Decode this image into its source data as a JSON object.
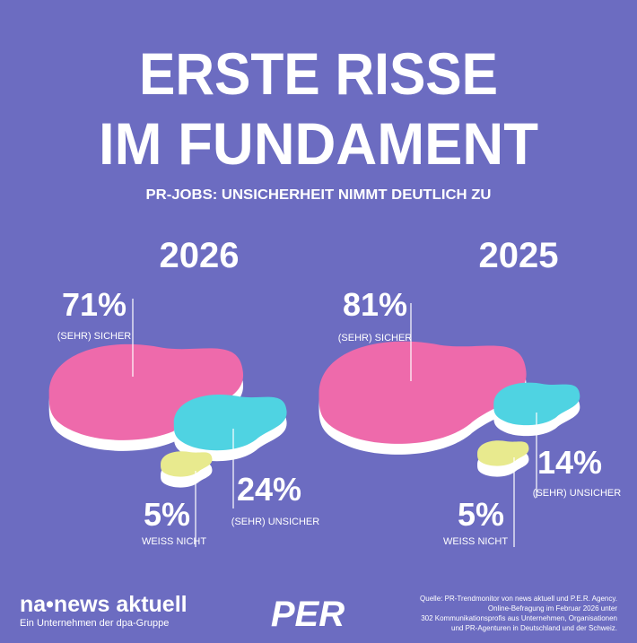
{
  "header": {
    "title_lines": [
      "ERSTE RISSE",
      "IM FUNDAMENT"
    ],
    "subtitle": "PR-JOBS: UNSICHERHEIT NIMMT DEUTLICH ZU"
  },
  "panels": [
    {
      "year": "2026",
      "items": [
        {
          "value": 71,
          "value_label": "71%",
          "label": "(SEHR) SICHER",
          "color": "#ee6aab"
        },
        {
          "value": 24,
          "value_label": "24%",
          "label": "(SEHR) UNSICHER",
          "color": "#4fd3e2"
        },
        {
          "value": 5,
          "value_label": "5%",
          "label": "WEISS NICHT",
          "color": "#e8ea8e"
        }
      ]
    },
    {
      "year": "2025",
      "items": [
        {
          "value": 81,
          "value_label": "81%",
          "label": "(SEHR) SICHER",
          "color": "#ee6aab"
        },
        {
          "value": 14,
          "value_label": "14%",
          "label": "(SEHR) UNSICHER",
          "color": "#4fd3e2"
        },
        {
          "value": 5,
          "value_label": "5%",
          "label": "WEISS NICHT",
          "color": "#e8ea8e"
        }
      ]
    }
  ],
  "footer": {
    "brand": "na•news aktuell",
    "brand_sub": "Ein Unternehmen der dpa-Gruppe",
    "logo": "PER",
    "source_lines": [
      "Quelle: PR-Trendmonitor von news aktuell und P.E.R. Agency.",
      "Online-Befragung im Februar 2026 unter",
      "302 Kommunikationsprofis aus Unternehmen, Organisationen",
      "und PR-Agenturen in Deutschland und der Schweiz."
    ]
  }
}
